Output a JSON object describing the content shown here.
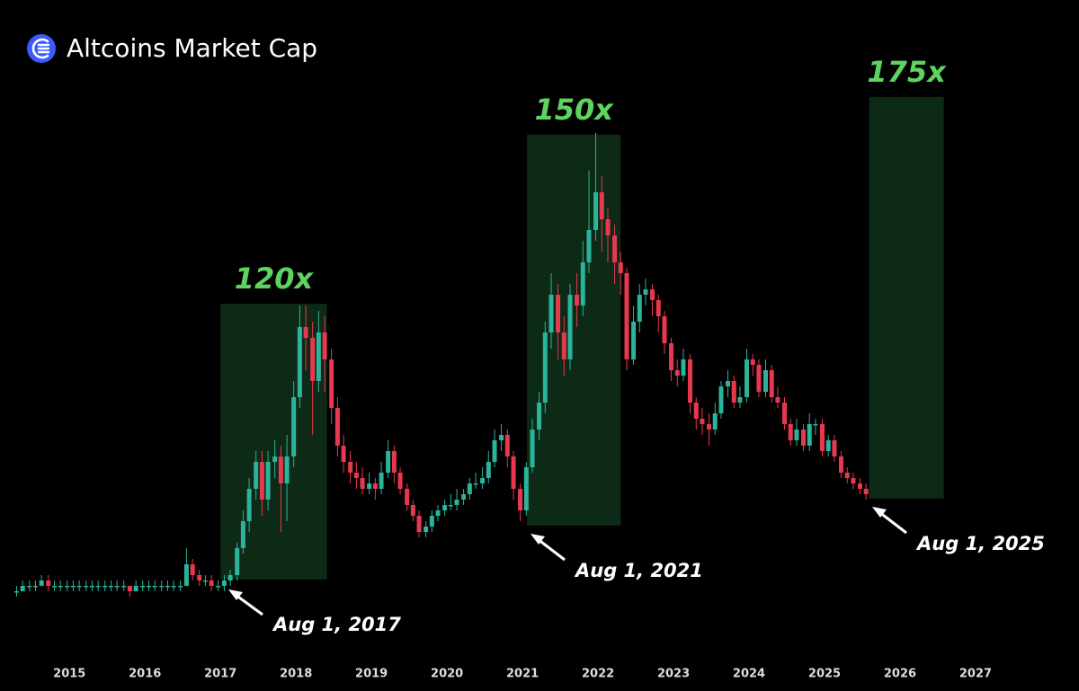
{
  "chart_data": {
    "type": "candlestick",
    "title": "Altcoins Market Cap",
    "xlim": [
      2014.08,
      2028.37
    ],
    "ylim": [
      0,
      100
    ],
    "xticks": [
      2015,
      2016,
      2017,
      2018,
      2019,
      2020,
      2021,
      2022,
      2023,
      2024,
      2025,
      2026,
      2027
    ],
    "up_color": "#2bb39b",
    "down_color": "#e8384f",
    "range_color": "#0d2a17",
    "range_label_color": "#5fd35f",
    "x": [
      2014.3,
      2014.38,
      2014.47,
      2014.55,
      2014.63,
      2014.72,
      2014.8,
      2014.88,
      2014.97,
      2015.05,
      2015.13,
      2015.22,
      2015.3,
      2015.38,
      2015.47,
      2015.55,
      2015.63,
      2015.72,
      2015.8,
      2015.88,
      2015.97,
      2016.05,
      2016.13,
      2016.22,
      2016.3,
      2016.38,
      2016.47,
      2016.55,
      2016.63,
      2016.72,
      2016.8,
      2016.88,
      2016.97,
      2017.05,
      2017.13,
      2017.22,
      2017.3,
      2017.38,
      2017.47,
      2017.55,
      2017.63,
      2017.72,
      2017.8,
      2017.88,
      2017.97,
      2018.05,
      2018.13,
      2018.22,
      2018.3,
      2018.38,
      2018.47,
      2018.55,
      2018.63,
      2018.72,
      2018.8,
      2018.88,
      2018.97,
      2019.05,
      2019.13,
      2019.22,
      2019.3,
      2019.38,
      2019.47,
      2019.55,
      2019.63,
      2019.72,
      2019.8,
      2019.88,
      2019.97,
      2020.05,
      2020.13,
      2020.22,
      2020.3,
      2020.38,
      2020.47,
      2020.55,
      2020.63,
      2020.72,
      2020.8,
      2020.88,
      2020.97,
      2021.05,
      2021.13,
      2021.22,
      2021.3,
      2021.38,
      2021.47,
      2021.55,
      2021.63,
      2021.72,
      2021.8,
      2021.88,
      2021.97,
      2022.05,
      2022.13,
      2022.22,
      2022.3,
      2022.38,
      2022.47,
      2022.55,
      2022.63,
      2022.72,
      2022.8,
      2022.88,
      2022.97,
      2023.05,
      2023.13,
      2023.22,
      2023.3,
      2023.38,
      2023.47,
      2023.55,
      2023.63,
      2023.72,
      2023.8,
      2023.88,
      2023.97,
      2024.05,
      2024.13,
      2024.22,
      2024.3,
      2024.38,
      2024.47,
      2024.55,
      2024.63,
      2024.72,
      2024.8,
      2024.88,
      2024.97,
      2025.05,
      2025.13,
      2025.22,
      2025.3,
      2025.38,
      2025.47,
      2025.55
    ],
    "candles": [
      [
        7,
        8,
        6,
        7
      ],
      [
        7,
        9,
        7,
        8
      ],
      [
        8,
        9,
        7,
        8
      ],
      [
        8,
        9,
        7,
        8
      ],
      [
        8,
        10,
        8,
        9
      ],
      [
        9,
        10,
        7,
        8
      ],
      [
        8,
        9,
        7,
        8
      ],
      [
        8,
        9,
        7,
        8
      ],
      [
        8,
        9,
        7,
        8
      ],
      [
        8,
        9,
        7,
        8
      ],
      [
        8,
        9,
        7,
        8
      ],
      [
        8,
        9,
        7,
        8
      ],
      [
        8,
        9,
        7,
        8
      ],
      [
        8,
        9,
        7,
        8
      ],
      [
        8,
        9,
        7,
        8
      ],
      [
        8,
        9,
        7,
        8
      ],
      [
        8,
        9,
        7,
        8
      ],
      [
        8,
        9,
        7,
        8
      ],
      [
        8,
        8,
        6,
        7
      ],
      [
        7,
        9,
        7,
        8
      ],
      [
        8,
        9,
        7,
        8
      ],
      [
        8,
        9,
        7,
        8
      ],
      [
        8,
        9,
        7,
        8
      ],
      [
        8,
        9,
        7,
        8
      ],
      [
        8,
        9,
        7,
        8
      ],
      [
        8,
        9,
        7,
        8
      ],
      [
        8,
        9,
        7,
        8
      ],
      [
        8,
        15,
        8,
        12
      ],
      [
        12,
        13,
        9,
        10
      ],
      [
        10,
        11,
        8,
        9
      ],
      [
        9,
        10,
        8,
        9
      ],
      [
        9,
        10,
        7,
        8
      ],
      [
        8,
        9,
        7,
        8
      ],
      [
        8,
        10,
        7,
        9
      ],
      [
        9,
        11,
        8,
        10
      ],
      [
        10,
        16,
        9,
        15
      ],
      [
        15,
        22,
        14,
        20
      ],
      [
        20,
        28,
        18,
        26
      ],
      [
        26,
        33,
        24,
        31
      ],
      [
        31,
        33,
        21,
        24
      ],
      [
        24,
        33,
        22,
        31
      ],
      [
        31,
        35,
        28,
        32
      ],
      [
        32,
        34,
        18,
        27
      ],
      [
        27,
        36,
        20,
        32
      ],
      [
        32,
        46,
        30,
        43
      ],
      [
        43,
        60,
        41,
        56
      ],
      [
        56,
        60,
        48,
        54
      ],
      [
        54,
        57,
        36,
        46
      ],
      [
        46,
        59,
        44,
        55
      ],
      [
        55,
        58,
        44,
        50
      ],
      [
        50,
        52,
        38,
        41
      ],
      [
        41,
        43,
        32,
        34
      ],
      [
        34,
        36,
        29,
        31
      ],
      [
        31,
        33,
        27,
        29
      ],
      [
        29,
        31,
        26,
        28
      ],
      [
        28,
        30,
        25,
        26
      ],
      [
        26,
        29,
        25,
        27
      ],
      [
        27,
        28,
        24,
        26
      ],
      [
        26,
        31,
        25,
        29
      ],
      [
        29,
        35,
        28,
        33
      ],
      [
        33,
        34,
        27,
        29
      ],
      [
        29,
        30,
        25,
        26
      ],
      [
        26,
        27,
        22,
        23
      ],
      [
        23,
        24,
        20,
        21
      ],
      [
        21,
        22,
        17,
        18
      ],
      [
        18,
        20,
        17,
        19
      ],
      [
        19,
        22,
        18,
        21
      ],
      [
        21,
        23,
        20,
        22
      ],
      [
        22,
        24,
        21,
        23
      ],
      [
        23,
        25,
        22,
        23
      ],
      [
        23,
        26,
        22,
        24
      ],
      [
        24,
        26,
        23,
        25
      ],
      [
        25,
        28,
        24,
        27
      ],
      [
        27,
        29,
        26,
        27
      ],
      [
        27,
        30,
        26,
        28
      ],
      [
        28,
        33,
        27,
        31
      ],
      [
        31,
        37,
        30,
        35
      ],
      [
        35,
        38,
        33,
        36
      ],
      [
        36,
        37,
        30,
        32
      ],
      [
        32,
        33,
        24,
        26
      ],
      [
        26,
        27,
        20,
        22
      ],
      [
        22,
        31,
        21,
        30
      ],
      [
        30,
        39,
        29,
        37
      ],
      [
        37,
        44,
        35,
        42
      ],
      [
        42,
        57,
        40,
        55
      ],
      [
        55,
        66,
        52,
        62
      ],
      [
        62,
        64,
        50,
        55
      ],
      [
        55,
        58,
        47,
        50
      ],
      [
        50,
        64,
        48,
        62
      ],
      [
        62,
        66,
        56,
        60
      ],
      [
        60,
        72,
        58,
        68
      ],
      [
        68,
        85,
        66,
        74
      ],
      [
        74,
        92,
        72,
        81
      ],
      [
        81,
        84,
        70,
        76
      ],
      [
        76,
        78,
        68,
        73
      ],
      [
        73,
        75,
        64,
        68
      ],
      [
        68,
        70,
        62,
        66
      ],
      [
        66,
        67,
        48,
        50
      ],
      [
        50,
        60,
        49,
        57
      ],
      [
        57,
        64,
        55,
        62
      ],
      [
        62,
        65,
        60,
        63
      ],
      [
        63,
        64,
        58,
        61
      ],
      [
        61,
        62,
        55,
        58
      ],
      [
        58,
        59,
        51,
        53
      ],
      [
        53,
        54,
        46,
        48
      ],
      [
        48,
        50,
        45,
        47
      ],
      [
        47,
        52,
        46,
        50
      ],
      [
        50,
        51,
        40,
        42
      ],
      [
        42,
        43,
        37,
        39
      ],
      [
        39,
        41,
        36,
        38
      ],
      [
        38,
        40,
        34,
        37
      ],
      [
        37,
        42,
        36,
        40
      ],
      [
        40,
        46,
        39,
        45
      ],
      [
        45,
        48,
        43,
        46
      ],
      [
        46,
        47,
        41,
        42
      ],
      [
        42,
        45,
        41,
        43
      ],
      [
        43,
        52,
        42,
        50
      ],
      [
        50,
        51,
        47,
        49
      ],
      [
        49,
        50,
        43,
        44
      ],
      [
        44,
        50,
        43,
        48
      ],
      [
        48,
        49,
        42,
        43
      ],
      [
        43,
        45,
        41,
        42
      ],
      [
        42,
        43,
        37,
        38
      ],
      [
        38,
        39,
        34,
        35
      ],
      [
        35,
        39,
        34,
        37
      ],
      [
        37,
        38,
        33,
        34
      ],
      [
        34,
        40,
        33,
        38
      ],
      [
        38,
        39,
        36,
        38
      ],
      [
        38,
        39,
        32,
        33
      ],
      [
        33,
        36,
        32,
        35
      ],
      [
        35,
        36,
        31,
        32
      ],
      [
        32,
        33,
        28,
        29
      ],
      [
        29,
        30,
        27,
        28
      ],
      [
        28,
        29,
        26,
        27
      ],
      [
        27,
        28,
        25,
        26
      ],
      [
        26,
        27,
        24,
        25
      ]
    ],
    "ranges": [
      {
        "label": "120x",
        "x": [
          2017.0,
          2018.41
        ],
        "y": [
          9.2,
          60.3
        ]
      },
      {
        "label": "150x",
        "x": [
          2021.06,
          2022.3
        ],
        "y": [
          19.2,
          91.7
        ]
      },
      {
        "label": "175x",
        "x": [
          2025.59,
          2026.58
        ],
        "y": [
          24.2,
          98.7
        ]
      }
    ],
    "annotations": [
      "Aug 1, 2017",
      "Aug 1, 2021",
      "Aug 1, 2025"
    ]
  }
}
